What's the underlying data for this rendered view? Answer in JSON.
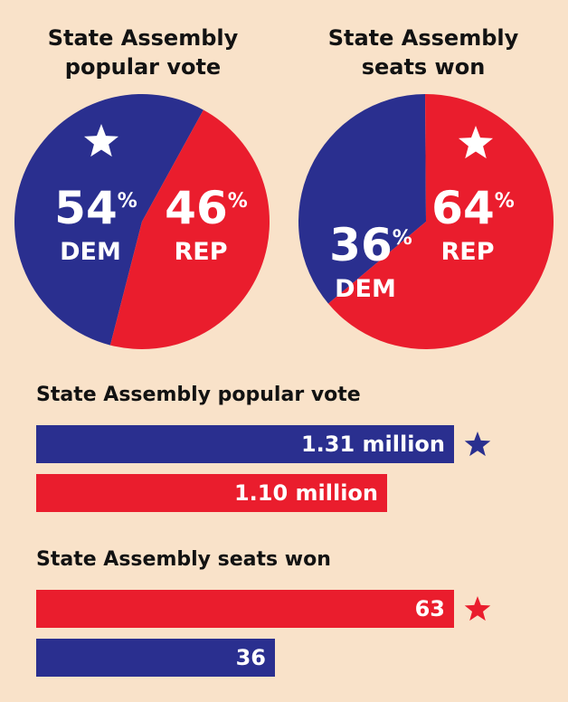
{
  "colors": {
    "dem": "#2a2f8f",
    "rep": "#ea1d2d",
    "background": "#f9e2c9",
    "star": "#ffffff"
  },
  "chart_data": [
    {
      "type": "pie",
      "title": "State Assembly popular vote",
      "slices": [
        {
          "label": "DEM",
          "value": 54,
          "display": "54",
          "unit": "%",
          "winner": true
        },
        {
          "label": "REP",
          "value": 46,
          "display": "46",
          "unit": "%",
          "winner": false
        }
      ]
    },
    {
      "type": "pie",
      "title": "State Assembly seats won",
      "slices": [
        {
          "label": "DEM",
          "value": 36,
          "display": "36",
          "unit": "%",
          "winner": false
        },
        {
          "label": "REP",
          "value": 64,
          "display": "64",
          "unit": "%",
          "winner": true
        }
      ]
    },
    {
      "type": "bar",
      "title": "State Assembly popular vote",
      "bars": [
        {
          "party": "dem",
          "value": 1.31,
          "label": "1.31 million",
          "winner": true
        },
        {
          "party": "rep",
          "value": 1.1,
          "label": "1.10 million",
          "winner": false
        }
      ]
    },
    {
      "type": "bar",
      "title": "State Assembly seats won",
      "bars": [
        {
          "party": "rep",
          "value": 63,
          "label": "63",
          "winner": true
        },
        {
          "party": "dem",
          "value": 36,
          "label": "36",
          "winner": false
        }
      ]
    }
  ]
}
